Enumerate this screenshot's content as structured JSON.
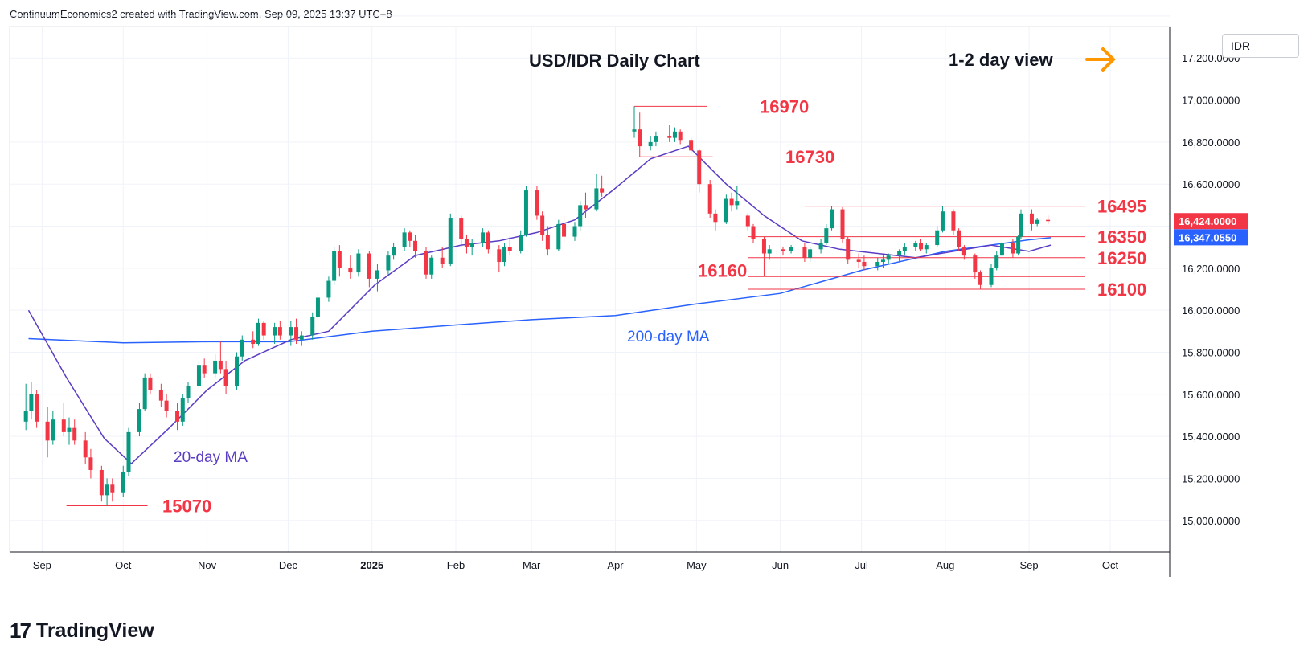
{
  "header": {
    "attribution": "ContinuumEconomics2 created with TradingView.com, Sep 09, 2025 13:37 UTC+8"
  },
  "footer": {
    "brand_mark": "17",
    "brand": "TradingView"
  },
  "price_axis": {
    "currency": "IDR",
    "ticks": [
      {
        "v": 17200,
        "label": "17,200.0000"
      },
      {
        "v": 17000,
        "label": "17,000.0000"
      },
      {
        "v": 16800,
        "label": "16,800.0000"
      },
      {
        "v": 16600,
        "label": "16,600.0000"
      },
      {
        "v": 16200,
        "label": "16,200.0000"
      },
      {
        "v": 16000,
        "label": "16,000.0000"
      },
      {
        "v": 15800,
        "label": "15,800.0000"
      },
      {
        "v": 15600,
        "label": "15,600.0000"
      },
      {
        "v": 15400,
        "label": "15,400.0000"
      },
      {
        "v": 15200,
        "label": "15,200.0000"
      },
      {
        "v": 15000,
        "label": "15,000.0000"
      }
    ],
    "last_price": {
      "v": 16424,
      "label": "16,424.0000",
      "color": "#f23645"
    },
    "ma_price": {
      "v": 16347.055,
      "label": "16,347.0550",
      "color": "#2962ff"
    }
  },
  "chart_data": {
    "type": "candlestick",
    "title": "USD/IDR Daily Chart",
    "subtitle": "1-2 day view",
    "x_ticks": [
      "Sep",
      "Oct",
      "Nov",
      "Dec",
      "2025",
      "Feb",
      "Mar",
      "Apr",
      "May",
      "Jun",
      "Jul",
      "Aug",
      "Sep",
      "Oct"
    ],
    "ylim": [
      14850,
      17350
    ],
    "grid": true,
    "levels": [
      {
        "label": "16970",
        "value": 16970,
        "from": "2025-04-08",
        "to": "2025-05-05"
      },
      {
        "label": "16730",
        "value": 16730,
        "from": "2025-04-10",
        "to": "2025-05-07"
      },
      {
        "label": "16495",
        "value": 16495,
        "from": "2025-06-10",
        "to": "2025-09-10"
      },
      {
        "label": "16350",
        "value": 16350,
        "from": "2025-05-20",
        "to": "2025-09-10"
      },
      {
        "label": "16250",
        "value": 16250,
        "from": "2025-05-20",
        "to": "2025-09-10"
      },
      {
        "label": "16160",
        "value": 16160,
        "from": "2025-05-20",
        "to": "2025-09-10"
      },
      {
        "label": "16100",
        "value": 16100,
        "from": "2025-05-20",
        "to": "2025-09-10"
      },
      {
        "label": "15070",
        "value": 15070,
        "from": "2024-09-10",
        "to": "2024-10-10"
      }
    ],
    "annotations": [
      "20-day MA",
      "200-day MA"
    ],
    "colors": {
      "up": "#089981",
      "down": "#f23645",
      "ma20": "#5b3cc4",
      "ma200": "#2962ff",
      "level": "#f23645",
      "arrow": "#ff9800"
    },
    "ma20": [
      [
        "2024-08-27",
        16000
      ],
      [
        "2024-09-10",
        15680
      ],
      [
        "2024-09-24",
        15390
      ],
      [
        "2024-10-04",
        15270
      ],
      [
        "2024-10-18",
        15440
      ],
      [
        "2024-11-01",
        15620
      ],
      [
        "2024-11-15",
        15760
      ],
      [
        "2024-12-02",
        15860
      ],
      [
        "2024-12-16",
        15900
      ],
      [
        "2025-01-02",
        16120
      ],
      [
        "2025-01-17",
        16260
      ],
      [
        "2025-02-03",
        16310
      ],
      [
        "2025-02-17",
        16330
      ],
      [
        "2025-03-03",
        16370
      ],
      [
        "2025-03-17",
        16430
      ],
      [
        "2025-03-31",
        16570
      ],
      [
        "2025-04-14",
        16720
      ],
      [
        "2025-04-28",
        16780
      ],
      [
        "2025-05-12",
        16600
      ],
      [
        "2025-05-26",
        16450
      ],
      [
        "2025-06-09",
        16330
      ],
      [
        "2025-06-23",
        16290
      ],
      [
        "2025-07-07",
        16270
      ],
      [
        "2025-07-21",
        16250
      ],
      [
        "2025-08-04",
        16280
      ],
      [
        "2025-08-18",
        16310
      ],
      [
        "2025-09-01",
        16280
      ],
      [
        "2025-09-09",
        16310
      ]
    ],
    "ma200": [
      [
        "2024-08-27",
        15865
      ],
      [
        "2024-10-01",
        15845
      ],
      [
        "2024-11-01",
        15850
      ],
      [
        "2024-12-01",
        15850
      ],
      [
        "2025-01-01",
        15900
      ],
      [
        "2025-02-01",
        15930
      ],
      [
        "2025-03-01",
        15955
      ],
      [
        "2025-04-01",
        15975
      ],
      [
        "2025-05-01",
        16030
      ],
      [
        "2025-06-01",
        16080
      ],
      [
        "2025-07-01",
        16190
      ],
      [
        "2025-08-01",
        16280
      ],
      [
        "2025-09-01",
        16335
      ],
      [
        "2025-09-09",
        16345
      ]
    ],
    "candles": [
      [
        "2024-08-26",
        15470,
        15650,
        15430,
        15520
      ],
      [
        "2024-08-28",
        15520,
        15660,
        15480,
        15600
      ],
      [
        "2024-08-30",
        15600,
        15620,
        15440,
        15470
      ],
      [
        "2024-09-03",
        15470,
        15540,
        15300,
        15380
      ],
      [
        "2024-09-05",
        15380,
        15520,
        15360,
        15480
      ],
      [
        "2024-09-09",
        15480,
        15560,
        15400,
        15420
      ],
      [
        "2024-09-11",
        15420,
        15490,
        15360,
        15440
      ],
      [
        "2024-09-13",
        15440,
        15480,
        15360,
        15380
      ],
      [
        "2024-09-17",
        15380,
        15420,
        15270,
        15300
      ],
      [
        "2024-09-19",
        15300,
        15340,
        15200,
        15240
      ],
      [
        "2024-09-23",
        15240,
        15260,
        15090,
        15120
      ],
      [
        "2024-09-25",
        15120,
        15200,
        15070,
        15170
      ],
      [
        "2024-09-27",
        15170,
        15200,
        15090,
        15130
      ],
      [
        "2024-10-01",
        15130,
        15260,
        15110,
        15230
      ],
      [
        "2024-10-03",
        15230,
        15440,
        15210,
        15420
      ],
      [
        "2024-10-07",
        15420,
        15560,
        15400,
        15530
      ],
      [
        "2024-10-09",
        15530,
        15700,
        15520,
        15680
      ],
      [
        "2024-10-11",
        15680,
        15700,
        15600,
        15620
      ],
      [
        "2024-10-15",
        15620,
        15650,
        15540,
        15570
      ],
      [
        "2024-10-17",
        15570,
        15600,
        15490,
        15520
      ],
      [
        "2024-10-21",
        15520,
        15560,
        15430,
        15470
      ],
      [
        "2024-10-23",
        15470,
        15600,
        15450,
        15580
      ],
      [
        "2024-10-25",
        15580,
        15660,
        15560,
        15640
      ],
      [
        "2024-10-29",
        15640,
        15760,
        15620,
        15740
      ],
      [
        "2024-10-31",
        15740,
        15770,
        15680,
        15700
      ],
      [
        "2024-11-04",
        15700,
        15790,
        15680,
        15760
      ],
      [
        "2024-11-06",
        15760,
        15850,
        15700,
        15720
      ],
      [
        "2024-11-08",
        15720,
        15760,
        15600,
        15640
      ],
      [
        "2024-11-12",
        15640,
        15800,
        15620,
        15780
      ],
      [
        "2024-11-14",
        15780,
        15880,
        15760,
        15860
      ],
      [
        "2024-11-18",
        15860,
        15900,
        15820,
        15840
      ],
      [
        "2024-11-20",
        15840,
        15960,
        15830,
        15940
      ],
      [
        "2024-11-22",
        15940,
        15950,
        15860,
        15880
      ],
      [
        "2024-11-26",
        15880,
        15940,
        15840,
        15920
      ],
      [
        "2024-11-28",
        15920,
        15950,
        15860,
        15880
      ],
      [
        "2024-12-02",
        15880,
        15950,
        15830,
        15920
      ],
      [
        "2024-12-04",
        15920,
        15960,
        15840,
        15860
      ],
      [
        "2024-12-06",
        15860,
        15900,
        15830,
        15880
      ],
      [
        "2024-12-10",
        15880,
        15990,
        15860,
        15970
      ],
      [
        "2024-12-12",
        15970,
        16080,
        15950,
        16060
      ],
      [
        "2024-12-16",
        16060,
        16160,
        16040,
        16140
      ],
      [
        "2024-12-18",
        16140,
        16300,
        16120,
        16280
      ],
      [
        "2024-12-20",
        16280,
        16310,
        16160,
        16200
      ],
      [
        "2024-12-24",
        16200,
        16260,
        16150,
        16180
      ],
      [
        "2024-12-27",
        16180,
        16290,
        16160,
        16270
      ],
      [
        "2024-12-31",
        16270,
        16280,
        16110,
        16150
      ],
      [
        "2025-01-03",
        16150,
        16220,
        16090,
        16190
      ],
      [
        "2025-01-07",
        16190,
        16280,
        16170,
        16260
      ],
      [
        "2025-01-09",
        16260,
        16320,
        16240,
        16300
      ],
      [
        "2025-01-13",
        16300,
        16390,
        16280,
        16370
      ],
      [
        "2025-01-15",
        16370,
        16380,
        16300,
        16330
      ],
      [
        "2025-01-17",
        16330,
        16360,
        16250,
        16280
      ],
      [
        "2025-01-21",
        16280,
        16300,
        16150,
        16170
      ],
      [
        "2025-01-23",
        16170,
        16260,
        16150,
        16250
      ],
      [
        "2025-01-27",
        16250,
        16300,
        16200,
        16220
      ],
      [
        "2025-01-30",
        16220,
        16460,
        16210,
        16440
      ],
      [
        "2025-02-03",
        16440,
        16450,
        16300,
        16340
      ],
      [
        "2025-02-05",
        16340,
        16360,
        16270,
        16300
      ],
      [
        "2025-02-07",
        16300,
        16340,
        16260,
        16320
      ],
      [
        "2025-02-11",
        16320,
        16390,
        16300,
        16370
      ],
      [
        "2025-02-13",
        16370,
        16380,
        16270,
        16290
      ],
      [
        "2025-02-17",
        16290,
        16310,
        16180,
        16230
      ],
      [
        "2025-02-19",
        16230,
        16320,
        16210,
        16300
      ],
      [
        "2025-02-21",
        16300,
        16350,
        16260,
        16280
      ],
      [
        "2025-02-25",
        16280,
        16380,
        16270,
        16360
      ],
      [
        "2025-02-27",
        16360,
        16590,
        16350,
        16570
      ],
      [
        "2025-03-03",
        16570,
        16590,
        16430,
        16450
      ],
      [
        "2025-03-05",
        16450,
        16470,
        16330,
        16360
      ],
      [
        "2025-03-07",
        16360,
        16400,
        16260,
        16290
      ],
      [
        "2025-03-11",
        16290,
        16430,
        16280,
        16410
      ],
      [
        "2025-03-13",
        16410,
        16450,
        16320,
        16350
      ],
      [
        "2025-03-17",
        16350,
        16420,
        16330,
        16400
      ],
      [
        "2025-03-19",
        16400,
        16520,
        16380,
        16500
      ],
      [
        "2025-03-21",
        16500,
        16560,
        16440,
        16480
      ],
      [
        "2025-03-25",
        16480,
        16650,
        16470,
        16580
      ],
      [
        "2025-03-27",
        16580,
        16640,
        16540,
        16560
      ],
      [
        "2025-04-08",
        16850,
        16970,
        16820,
        16860
      ],
      [
        "2025-04-10",
        16860,
        16940,
        16730,
        16780
      ],
      [
        "2025-04-14",
        16780,
        16830,
        16760,
        16800
      ],
      [
        "2025-04-16",
        16800,
        16850,
        16780,
        16830
      ],
      [
        "2025-04-21",
        16830,
        16880,
        16800,
        16820
      ],
      [
        "2025-04-23",
        16820,
        16870,
        16800,
        16850
      ],
      [
        "2025-04-25",
        16850,
        16860,
        16790,
        16810
      ],
      [
        "2025-04-29",
        16810,
        16820,
        16750,
        16760
      ],
      [
        "2025-05-02",
        16760,
        16770,
        16560,
        16600
      ],
      [
        "2025-05-06",
        16600,
        16620,
        16440,
        16460
      ],
      [
        "2025-05-08",
        16460,
        16480,
        16380,
        16420
      ],
      [
        "2025-05-12",
        16420,
        16550,
        16410,
        16530
      ],
      [
        "2025-05-14",
        16530,
        16560,
        16470,
        16500
      ],
      [
        "2025-05-16",
        16500,
        16590,
        16480,
        16520
      ],
      [
        "2025-05-20",
        16450,
        16460,
        16380,
        16400
      ],
      [
        "2025-05-22",
        16400,
        16410,
        16320,
        16340
      ],
      [
        "2025-05-26",
        16340,
        16350,
        16160,
        16270
      ],
      [
        "2025-05-28",
        16270,
        16310,
        16240,
        16290
      ],
      [
        "2025-06-02",
        16290,
        16300,
        16260,
        16280
      ],
      [
        "2025-06-05",
        16280,
        16310,
        16270,
        16300
      ],
      [
        "2025-06-10",
        16300,
        16320,
        16230,
        16250
      ],
      [
        "2025-06-12",
        16250,
        16300,
        16230,
        16290
      ],
      [
        "2025-06-16",
        16290,
        16340,
        16270,
        16320
      ],
      [
        "2025-06-18",
        16320,
        16410,
        16310,
        16390
      ],
      [
        "2025-06-20",
        16390,
        16495,
        16380,
        16480
      ],
      [
        "2025-06-24",
        16480,
        16490,
        16320,
        16340
      ],
      [
        "2025-06-26",
        16340,
        16350,
        16220,
        16240
      ],
      [
        "2025-06-30",
        16240,
        16270,
        16200,
        16230
      ],
      [
        "2025-07-02",
        16230,
        16260,
        16190,
        16210
      ],
      [
        "2025-07-07",
        16210,
        16250,
        16190,
        16230
      ],
      [
        "2025-07-09",
        16230,
        16260,
        16200,
        16240
      ],
      [
        "2025-07-11",
        16240,
        16270,
        16220,
        16260
      ],
      [
        "2025-07-15",
        16260,
        16290,
        16230,
        16280
      ],
      [
        "2025-07-17",
        16280,
        16320,
        16260,
        16300
      ],
      [
        "2025-07-21",
        16300,
        16330,
        16280,
        16320
      ],
      [
        "2025-07-23",
        16320,
        16340,
        16280,
        16290
      ],
      [
        "2025-07-25",
        16290,
        16320,
        16270,
        16310
      ],
      [
        "2025-07-29",
        16310,
        16400,
        16300,
        16380
      ],
      [
        "2025-07-31",
        16380,
        16495,
        16370,
        16470
      ],
      [
        "2025-08-04",
        16470,
        16480,
        16360,
        16380
      ],
      [
        "2025-08-06",
        16380,
        16390,
        16280,
        16300
      ],
      [
        "2025-08-08",
        16300,
        16310,
        16240,
        16260
      ],
      [
        "2025-08-12",
        16260,
        16270,
        16150,
        16180
      ],
      [
        "2025-08-14",
        16180,
        16190,
        16100,
        16120
      ],
      [
        "2025-08-18",
        16120,
        16220,
        16110,
        16200
      ],
      [
        "2025-08-20",
        16200,
        16280,
        16190,
        16260
      ],
      [
        "2025-08-22",
        16260,
        16340,
        16250,
        16320
      ],
      [
        "2025-08-26",
        16320,
        16340,
        16250,
        16270
      ],
      [
        "2025-08-28",
        16270,
        16360,
        16260,
        16350
      ],
      [
        "2025-08-29",
        16350,
        16480,
        16340,
        16460
      ],
      [
        "2025-09-02",
        16460,
        16480,
        16380,
        16410
      ],
      [
        "2025-09-04",
        16410,
        16440,
        16400,
        16430
      ],
      [
        "2025-09-08",
        16430,
        16450,
        16410,
        16424
      ]
    ]
  }
}
